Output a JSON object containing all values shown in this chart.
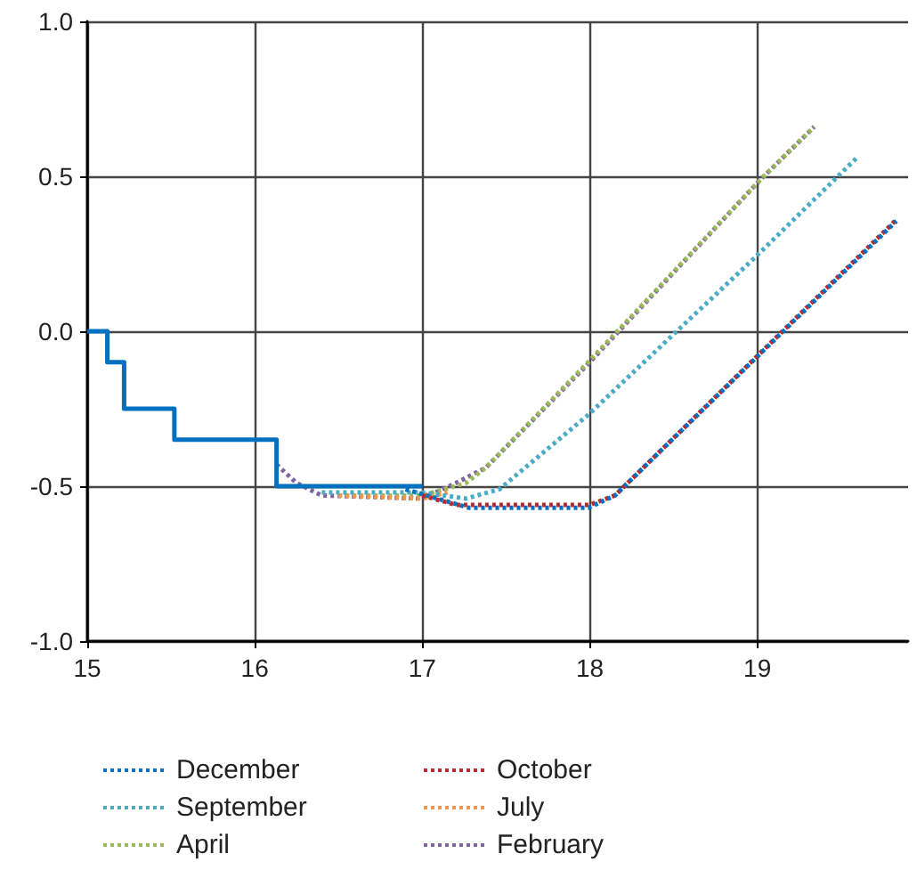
{
  "chart_data": {
    "type": "line",
    "xlim": [
      15,
      19.9
    ],
    "xticks": [
      15,
      16,
      17,
      18,
      19
    ],
    "ylim": [
      -1,
      1
    ],
    "yticks": [
      {
        "value": -1,
        "label": "-1.0"
      },
      {
        "value": -0.5,
        "label": "-0.5"
      },
      {
        "value": 0,
        "label": "0.0"
      },
      {
        "value": 0.5,
        "label": "0.5"
      },
      {
        "value": 1,
        "label": "1.0"
      }
    ],
    "grid": true,
    "legend": "bottom",
    "marker": "none",
    "series": [
      {
        "type": "step",
        "color": "#0070c0",
        "line_style": "solid",
        "x": [
          15,
          15.12,
          15.22,
          15.52,
          16.13,
          17
        ],
        "values": [
          0,
          -0.1,
          -0.25,
          -0.35,
          -0.5,
          -0.5
        ]
      },
      {
        "name": "December",
        "color": "#0070c0",
        "line_style": "dotted",
        "x": [
          16.9,
          17.28,
          17.99,
          18.15,
          19.83
        ],
        "values": [
          -0.51,
          -0.57,
          -0.57,
          -0.53,
          0.356
        ]
      },
      {
        "name": "October",
        "color": "#c0282d",
        "line_style": "dotted",
        "x": [
          17,
          17.2,
          18,
          18.15,
          19.83
        ],
        "values": [
          -0.53,
          -0.56,
          -0.56,
          -0.53,
          0.36
        ]
      },
      {
        "name": "September",
        "color": "#4bacc6",
        "line_style": "dotted",
        "x": [
          16.4,
          16.71,
          17,
          17.26,
          17.46,
          17.99,
          18.98,
          19.6
        ],
        "values": [
          -0.52,
          -0.52,
          -0.52,
          -0.54,
          -0.51,
          -0.27,
          0.235,
          0.563
        ]
      },
      {
        "name": "July",
        "color": "#f79646",
        "line_style": "dotted",
        "x": [
          16.5,
          17,
          17.15
        ],
        "values": [
          -0.53,
          -0.54,
          -0.52
        ]
      },
      {
        "name": "April",
        "color": "#9bbb59",
        "line_style": "dotted",
        "x": [
          16.5,
          17,
          17.26,
          17.38,
          17.99,
          19.02,
          19.34
        ],
        "values": [
          -0.53,
          -0.53,
          -0.49,
          -0.44,
          -0.1,
          0.49,
          0.66
        ]
      },
      {
        "name": "February",
        "color": "#8064a2",
        "line_style": "dotted",
        "x": [
          16.13,
          16.25,
          16.4,
          17,
          17.2,
          17.38,
          18,
          19.02,
          19.34
        ],
        "values": [
          -0.43,
          -0.49,
          -0.53,
          -0.54,
          -0.49,
          -0.44,
          -0.1,
          0.49,
          0.66
        ]
      }
    ]
  }
}
